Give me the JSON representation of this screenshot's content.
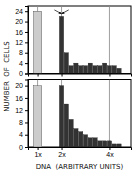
{
  "chart_data": {
    "type": "bar",
    "x_label": "DNA  (ARBITRARY UNITS)",
    "y_label": "NUMBER  OF  CELLS",
    "xlim": [
      0.1,
      4.4
    ],
    "xticks": [
      {
        "value": 0.5,
        "label": "1x"
      },
      {
        "value": 1.5,
        "label": "2x"
      },
      {
        "value": 3.5,
        "label": "4x"
      }
    ],
    "grid": false,
    "panels": [
      {
        "ylim": [
          0,
          26
        ],
        "yticks": [
          0,
          4,
          8,
          12,
          16,
          20,
          24
        ],
        "tick_labels": "y",
        "vlines": [
          0.5,
          1.5,
          3.5
        ],
        "series": [
          {
            "x": [
              0.5
            ],
            "values": [
              24
            ],
            "color": "#cccccc"
          },
          {
            "x": [
              1.5,
              1.7,
              1.9,
              2.1,
              2.3,
              2.5,
              2.7,
              2.9,
              3.1,
              3.3,
              3.5,
              3.7,
              3.9
            ],
            "values": [
              22,
              8,
              3,
              4,
              3,
              3,
              4,
              3,
              3,
              4,
              3,
              3,
              2
            ],
            "color": "#333333"
          }
        ],
        "arrows": [
          {
            "x": 1.2,
            "y": 24.5,
            "to_x": 1.5,
            "to_y": 23
          },
          {
            "x": 1.8,
            "y": 24.5,
            "to_x": 1.5,
            "to_y": 23
          }
        ]
      },
      {
        "ylim": [
          0,
          22
        ],
        "yticks": [
          0,
          4,
          8,
          12,
          16,
          20
        ],
        "tick_labels": true,
        "vlines": [
          0.5,
          1.5,
          3.5
        ],
        "series": [
          {
            "x": [
              0.5
            ],
            "values": [
              20
            ],
            "color": "#cccccc"
          },
          {
            "x": [
              1.5,
              1.7,
              1.9,
              2.1,
              2.3,
              2.5,
              2.7,
              2.9,
              3.1,
              3.3,
              3.5,
              3.7,
              3.9
            ],
            "values": [
              20,
              14,
              9,
              6,
              5,
              4,
              3,
              3,
              2,
              2,
              2,
              1,
              1
            ],
            "color": "#333333"
          }
        ]
      }
    ]
  }
}
